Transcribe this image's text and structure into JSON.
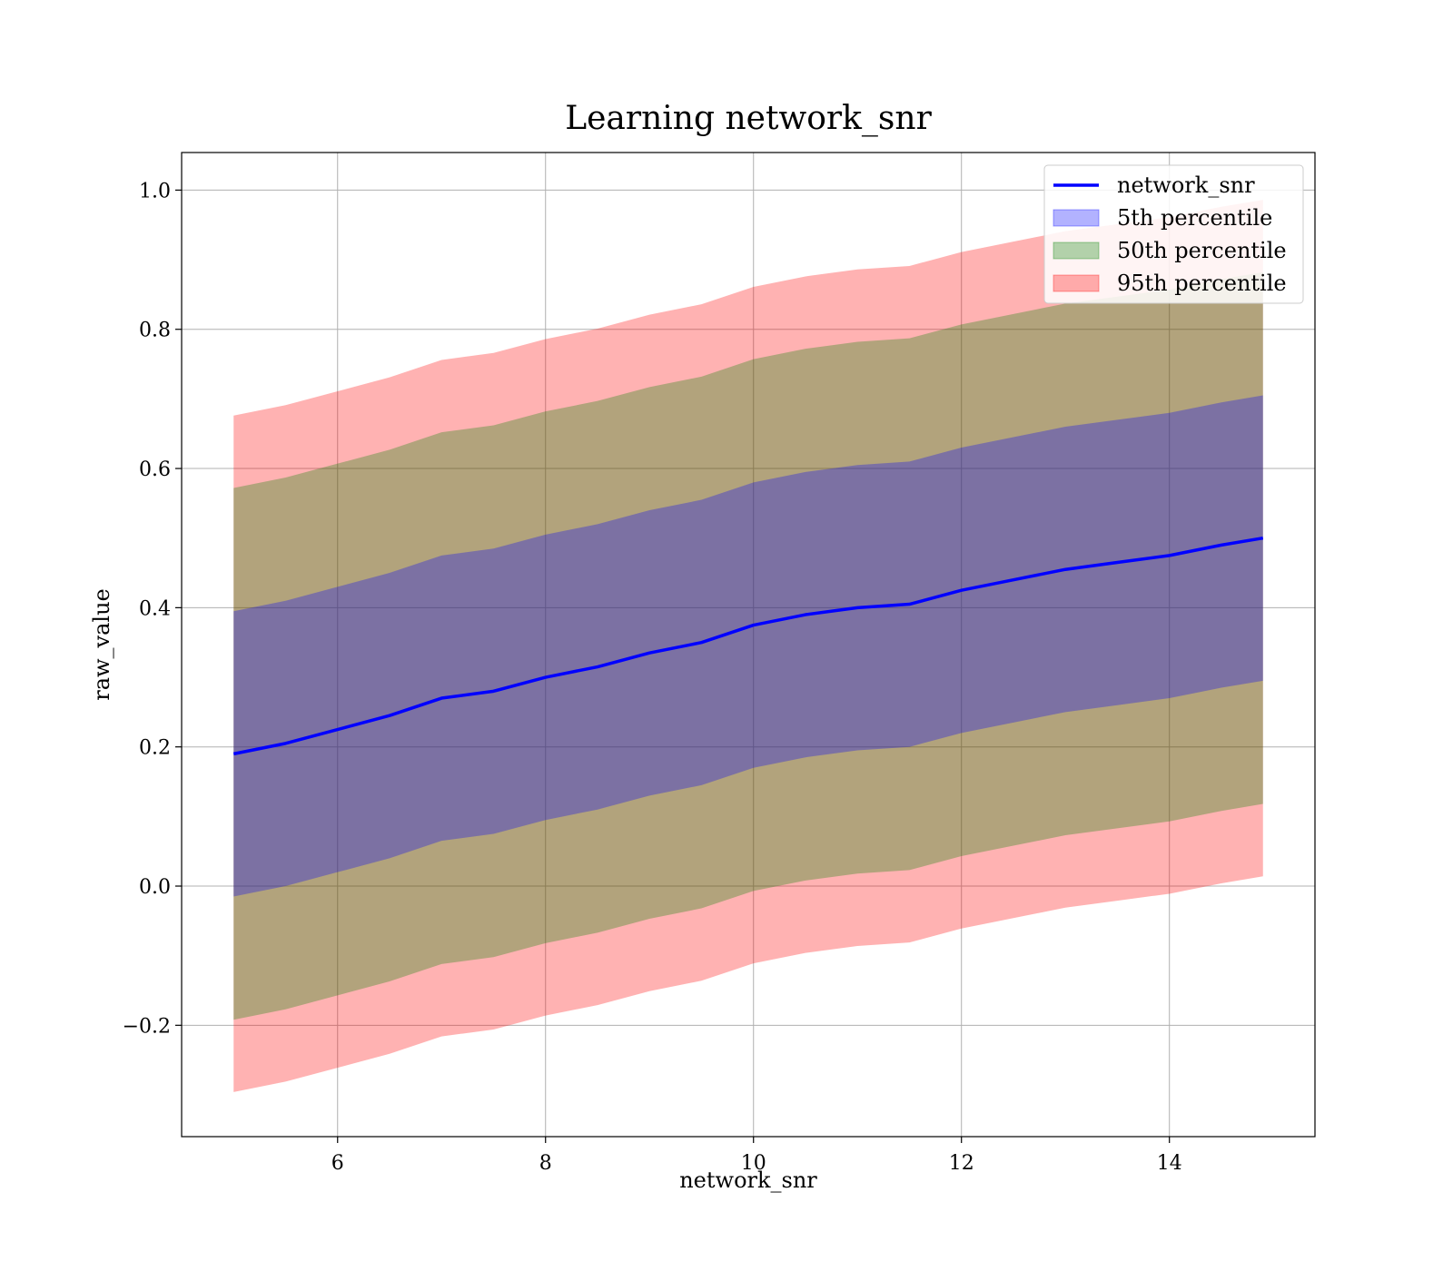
{
  "chart_data": {
    "type": "area",
    "title": "Learning network_snr",
    "xlabel": "network_snr",
    "ylabel": "raw_value",
    "xlim": [
      4.5,
      15.4
    ],
    "ylim": [
      -0.36,
      1.054
    ],
    "xticks": [
      6,
      8,
      10,
      12,
      14
    ],
    "xtick_labels": [
      "6",
      "8",
      "10",
      "12",
      "14"
    ],
    "yticks": [
      -0.2,
      0.0,
      0.2,
      0.4,
      0.6,
      0.8,
      1.0
    ],
    "ytick_labels": [
      "−0.2",
      "0.0",
      "0.2",
      "0.4",
      "0.6",
      "0.8",
      "1.0"
    ],
    "grid": true,
    "legend_position": "top-right",
    "legend": [
      {
        "label": "network_snr",
        "kind": "line",
        "color": "#0000ff"
      },
      {
        "label": "5th percentile",
        "kind": "patch",
        "color": "#0000ff"
      },
      {
        "label": "50th percentile",
        "kind": "patch",
        "color": "#008000"
      },
      {
        "label": "95th percentile",
        "kind": "patch",
        "color": "#ff0000"
      }
    ],
    "x": [
      5.0,
      5.5,
      6.0,
      6.5,
      7.0,
      7.5,
      8.0,
      8.5,
      9.0,
      9.5,
      10.0,
      10.5,
      11.0,
      11.5,
      12.0,
      12.5,
      13.0,
      13.5,
      14.0,
      14.5,
      14.9
    ],
    "mean": [
      0.19,
      0.205,
      0.225,
      0.245,
      0.27,
      0.28,
      0.3,
      0.315,
      0.335,
      0.35,
      0.375,
      0.39,
      0.4,
      0.405,
      0.425,
      0.44,
      0.455,
      0.465,
      0.475,
      0.49,
      0.5
    ],
    "bands": [
      {
        "name": "95th percentile",
        "color": "#ff0000",
        "opacity": 0.3,
        "half_width": 0.486
      },
      {
        "name": "50th percentile",
        "color": "#008000",
        "opacity": 0.3,
        "half_width": 0.382
      },
      {
        "name": "5th percentile",
        "color": "#0000ff",
        "opacity": 0.3,
        "half_width": 0.205
      }
    ]
  }
}
